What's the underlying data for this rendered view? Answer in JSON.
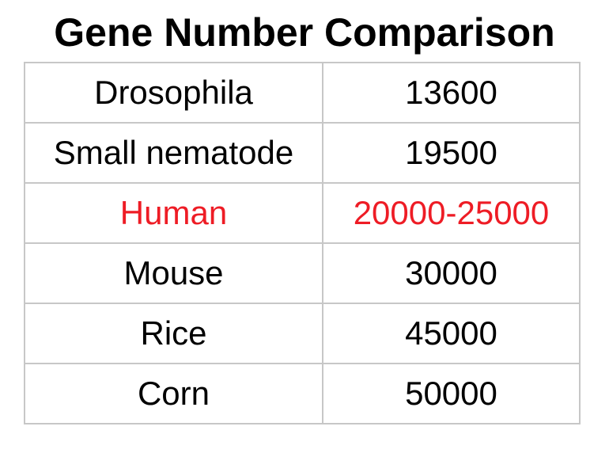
{
  "title": "Gene Number Comparison",
  "highlight_color": "#ee1c25",
  "rows": [
    {
      "organism": "Drosophila",
      "genes": "13600"
    },
    {
      "organism": "Small nematode",
      "genes": "19500"
    },
    {
      "organism": "Human",
      "genes": "20000-25000",
      "highlighted": true
    },
    {
      "organism": "Mouse",
      "genes": "30000"
    },
    {
      "organism": "Rice",
      "genes": "45000"
    },
    {
      "organism": "Corn",
      "genes": "50000"
    }
  ]
}
